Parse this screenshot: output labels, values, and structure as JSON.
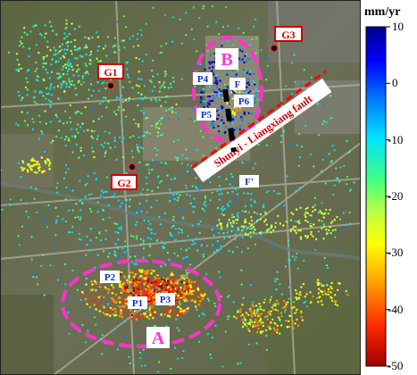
{
  "legend": {
    "unit": "mm/yr",
    "ticks": [
      "10",
      "0",
      "-10",
      "-20",
      "-30",
      "-40",
      "-50"
    ],
    "tick_values": [
      10,
      0,
      -10,
      -20,
      -30,
      -40,
      -50
    ],
    "colormap": [
      "#00008b",
      "#0000ff",
      "#0080ff",
      "#00e5ff",
      "#40ff80",
      "#c0ff40",
      "#ffff00",
      "#ff9a00",
      "#ff2a00",
      "#a00000"
    ]
  },
  "areas": {
    "a": "A",
    "b": "B"
  },
  "gps_stations": {
    "g1": "G1",
    "g2": "G2",
    "g3": "G3"
  },
  "points": {
    "p1": "P1",
    "p2": "P2",
    "p3": "P3",
    "p4": "P4",
    "p5": "P5",
    "p6": "P6"
  },
  "profile": {
    "start": "F",
    "end": "F'"
  },
  "fault": {
    "name": "Shunyi - Liangxiang fault"
  },
  "colors": {
    "ellipse": "#ff33cc",
    "fault_line": "#ff0000",
    "gps_label_border": "#d00000",
    "point_label_text": "#1030c0"
  }
}
